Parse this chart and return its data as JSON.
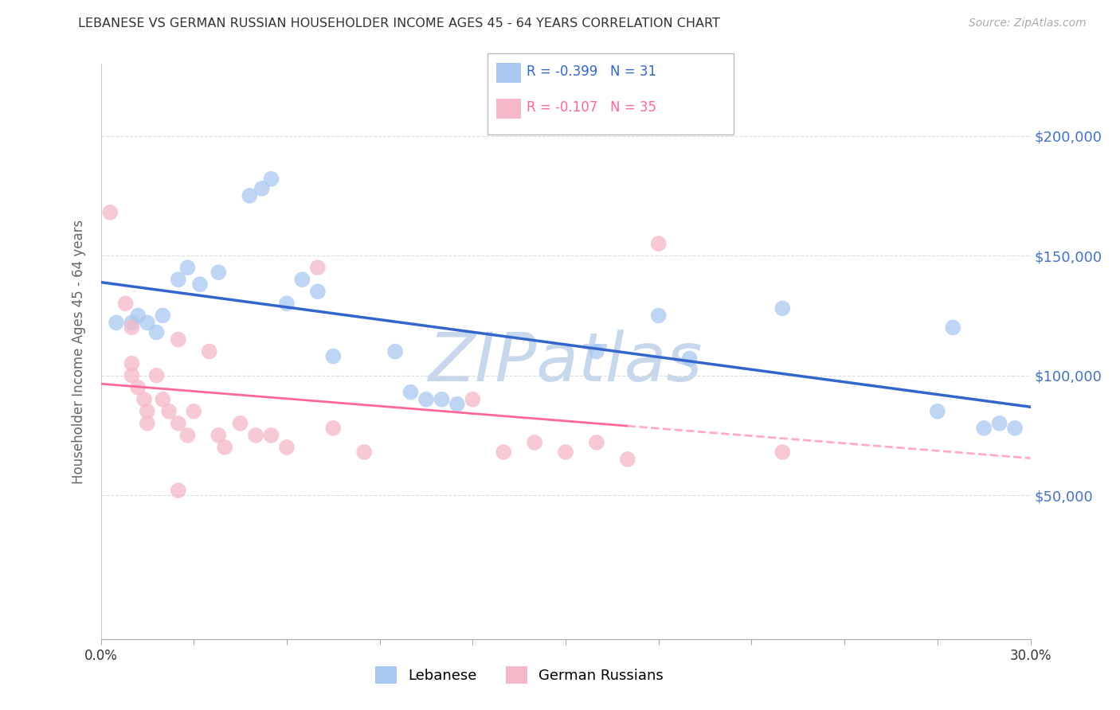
{
  "title": "LEBANESE VS GERMAN RUSSIAN HOUSEHOLDER INCOME AGES 45 - 64 YEARS CORRELATION CHART",
  "source": "Source: ZipAtlas.com",
  "ylabel": "Householder Income Ages 45 - 64 years",
  "yticks": [
    50000,
    100000,
    150000,
    200000
  ],
  "ytick_labels": [
    "$50,000",
    "$100,000",
    "$150,000",
    "$200,000"
  ],
  "xlim": [
    0.0,
    0.3
  ],
  "ylim": [
    -10000,
    230000
  ],
  "legend_blue_r": "R = -0.399",
  "legend_blue_n": "N = 31",
  "legend_pink_r": "R = -0.107",
  "legend_pink_n": "N = 35",
  "legend_label_blue": "Lebanese",
  "legend_label_pink": "German Russians",
  "blue_scatter": [
    [
      0.005,
      122000
    ],
    [
      0.01,
      122000
    ],
    [
      0.012,
      125000
    ],
    [
      0.015,
      122000
    ],
    [
      0.018,
      118000
    ],
    [
      0.02,
      125000
    ],
    [
      0.025,
      140000
    ],
    [
      0.028,
      145000
    ],
    [
      0.032,
      138000
    ],
    [
      0.038,
      143000
    ],
    [
      0.048,
      175000
    ],
    [
      0.052,
      178000
    ],
    [
      0.055,
      182000
    ],
    [
      0.06,
      130000
    ],
    [
      0.065,
      140000
    ],
    [
      0.07,
      135000
    ],
    [
      0.075,
      108000
    ],
    [
      0.095,
      110000
    ],
    [
      0.1,
      93000
    ],
    [
      0.105,
      90000
    ],
    [
      0.11,
      90000
    ],
    [
      0.115,
      88000
    ],
    [
      0.16,
      110000
    ],
    [
      0.18,
      125000
    ],
    [
      0.19,
      107000
    ],
    [
      0.22,
      128000
    ],
    [
      0.27,
      85000
    ],
    [
      0.275,
      120000
    ],
    [
      0.285,
      78000
    ],
    [
      0.29,
      80000
    ],
    [
      0.295,
      78000
    ]
  ],
  "pink_scatter": [
    [
      0.003,
      168000
    ],
    [
      0.008,
      130000
    ],
    [
      0.01,
      120000
    ],
    [
      0.01,
      105000
    ],
    [
      0.01,
      100000
    ],
    [
      0.012,
      95000
    ],
    [
      0.014,
      90000
    ],
    [
      0.015,
      85000
    ],
    [
      0.015,
      80000
    ],
    [
      0.018,
      100000
    ],
    [
      0.02,
      90000
    ],
    [
      0.022,
      85000
    ],
    [
      0.025,
      115000
    ],
    [
      0.025,
      80000
    ],
    [
      0.028,
      75000
    ],
    [
      0.03,
      85000
    ],
    [
      0.035,
      110000
    ],
    [
      0.038,
      75000
    ],
    [
      0.04,
      70000
    ],
    [
      0.045,
      80000
    ],
    [
      0.05,
      75000
    ],
    [
      0.055,
      75000
    ],
    [
      0.06,
      70000
    ],
    [
      0.07,
      145000
    ],
    [
      0.075,
      78000
    ],
    [
      0.085,
      68000
    ],
    [
      0.12,
      90000
    ],
    [
      0.13,
      68000
    ],
    [
      0.14,
      72000
    ],
    [
      0.15,
      68000
    ],
    [
      0.17,
      65000
    ],
    [
      0.18,
      155000
    ],
    [
      0.22,
      68000
    ],
    [
      0.025,
      52000
    ],
    [
      0.16,
      72000
    ]
  ],
  "blue_color": "#A8C8F0",
  "pink_color": "#F5B8C8",
  "blue_line_color": "#3366CC",
  "pink_line_color": "#FF6699",
  "pink_dash_color": "#FFAACC",
  "background_color": "#FFFFFF",
  "grid_color": "#DDDDDD",
  "title_color": "#333333",
  "axis_label_color": "#666666",
  "right_ytick_color": "#4472C4",
  "watermark": "ZIPatlas",
  "watermark_color": "#C8D8EC",
  "pink_solid_xlim": 0.17
}
